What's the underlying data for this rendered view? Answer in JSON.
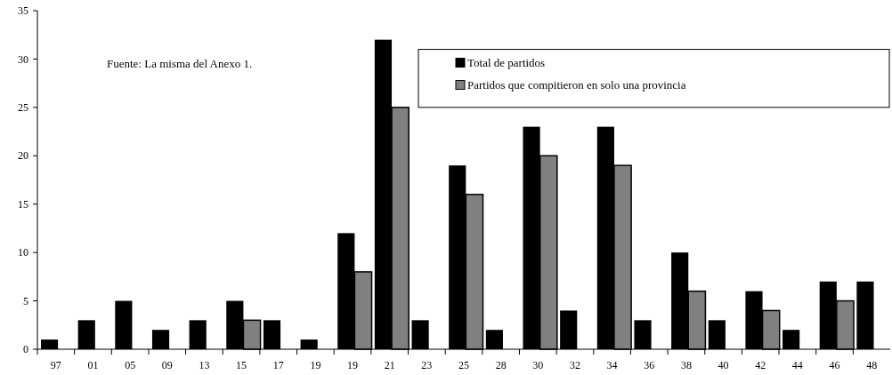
{
  "chart_data": {
    "type": "bar",
    "categories": [
      "97",
      "01",
      "05",
      "09",
      "13",
      "15",
      "17",
      "19",
      "19",
      "21",
      "23",
      "25",
      "28",
      "30",
      "32",
      "34",
      "36",
      "38",
      "40",
      "42",
      "44",
      "46",
      "48"
    ],
    "series": [
      {
        "name": "Total de partidos",
        "color": "#000000",
        "values": [
          1,
          3,
          5,
          2,
          3,
          5,
          3,
          1,
          12,
          32,
          3,
          19,
          2,
          23,
          4,
          23,
          3,
          10,
          3,
          6,
          2,
          7,
          7
        ]
      },
      {
        "name": "Partidos que compitieron en solo una provincia",
        "color": "#808080",
        "values": [
          null,
          null,
          null,
          null,
          null,
          3,
          null,
          null,
          8,
          25,
          null,
          16,
          null,
          20,
          null,
          19,
          null,
          6,
          null,
          4,
          null,
          5,
          null
        ]
      }
    ],
    "ylim": [
      0,
      35
    ],
    "yticks": [
      0,
      5,
      10,
      15,
      20,
      25,
      30,
      35
    ],
    "grid": false,
    "legend": "top right",
    "annotations": [
      "Fuente: La misma del Anexo 1."
    ]
  }
}
